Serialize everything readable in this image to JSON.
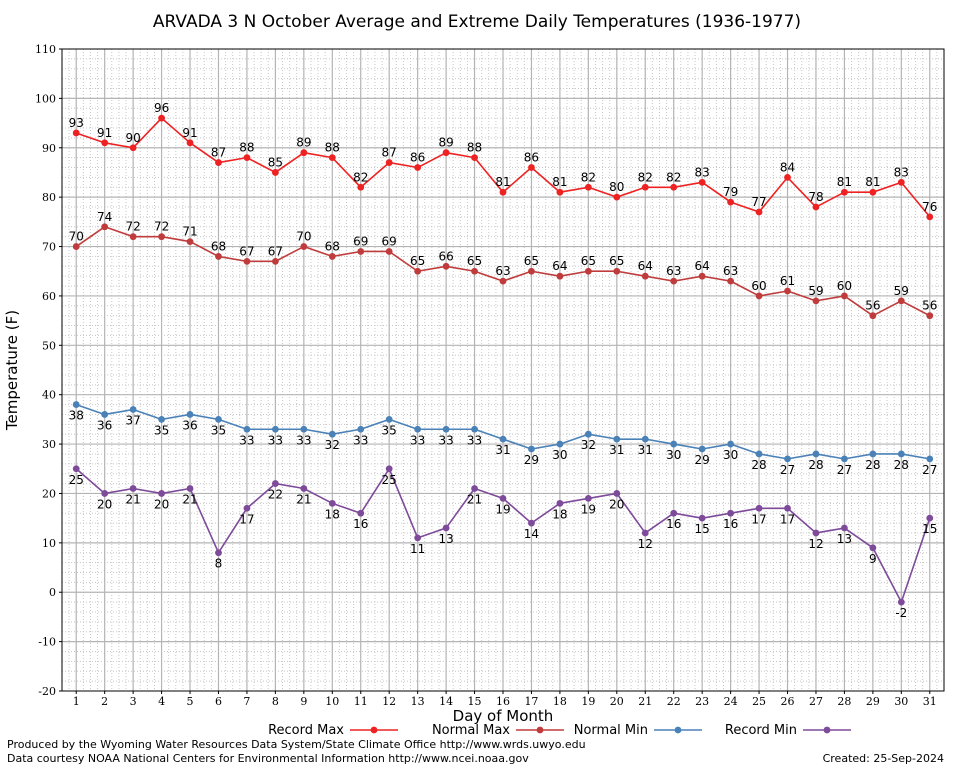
{
  "chart_data": {
    "type": "line",
    "title": "ARVADA 3 N October Average and Extreme Daily Temperatures (1936-1977)",
    "xlabel": "Day of Month",
    "ylabel": "Temperature (F)",
    "ylim": [
      -20,
      110
    ],
    "xlim": [
      0.5,
      31.5
    ],
    "yticks": [
      -20,
      -10,
      0,
      10,
      20,
      30,
      40,
      50,
      60,
      70,
      80,
      90,
      100,
      110
    ],
    "categories": [
      1,
      2,
      3,
      4,
      5,
      6,
      7,
      8,
      9,
      10,
      11,
      12,
      13,
      14,
      15,
      16,
      17,
      18,
      19,
      20,
      21,
      22,
      23,
      24,
      25,
      26,
      27,
      28,
      29,
      30,
      31
    ],
    "grid": true,
    "legend_position": "bottom",
    "series": [
      {
        "name": "Record Max",
        "color": "#ee2222",
        "label_position": "above",
        "values": [
          93,
          91,
          90,
          96,
          91,
          87,
          88,
          85,
          89,
          88,
          82,
          87,
          86,
          89,
          88,
          81,
          86,
          81,
          82,
          80,
          82,
          82,
          83,
          79,
          77,
          84,
          78,
          81,
          81,
          83,
          76
        ]
      },
      {
        "name": "Normal Max",
        "color": "#c03c3c",
        "label_position": "above",
        "values": [
          70,
          74,
          72,
          72,
          71,
          68,
          67,
          67,
          70,
          68,
          69,
          69,
          65,
          66,
          65,
          63,
          65,
          64,
          65,
          65,
          64,
          63,
          64,
          63,
          60,
          61,
          59,
          60,
          56,
          59,
          56
        ]
      },
      {
        "name": "Normal Min",
        "color": "#4a82b8",
        "label_position": "below",
        "values": [
          38,
          36,
          37,
          35,
          36,
          35,
          33,
          33,
          33,
          32,
          33,
          35,
          33,
          33,
          33,
          31,
          29,
          30,
          32,
          31,
          31,
          30,
          29,
          30,
          28,
          27,
          28,
          27,
          28,
          28,
          27
        ]
      },
      {
        "name": "Record Min",
        "color": "#7e4a9a",
        "label_position": "below",
        "values": [
          25,
          20,
          21,
          20,
          21,
          8,
          17,
          22,
          21,
          18,
          16,
          25,
          11,
          13,
          21,
          19,
          14,
          18,
          19,
          20,
          12,
          16,
          15,
          16,
          17,
          17,
          12,
          13,
          9,
          -2,
          15
        ]
      }
    ]
  },
  "footer": {
    "produced_by": "Produced by the Wyoming Water Resources Data System/State Climate Office http://www.wrds.uwyo.edu",
    "data_courtesy": "Data courtesy NOAA National Centers for Environmental Information http://www.ncei.noaa.gov",
    "created": "Created:  25-Sep-2024"
  }
}
